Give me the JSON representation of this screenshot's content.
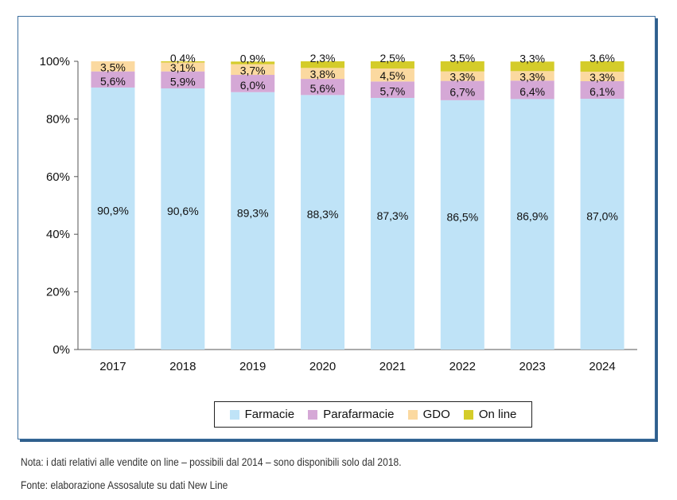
{
  "chart_data": {
    "type": "bar",
    "stacked": true,
    "categories": [
      "2017",
      "2018",
      "2019",
      "2020",
      "2021",
      "2022",
      "2023",
      "2024"
    ],
    "series": [
      {
        "name": "Farmacie",
        "color": "#bfe3f7",
        "values": [
          90.9,
          90.6,
          89.3,
          88.3,
          87.3,
          86.5,
          86.9,
          87.0
        ],
        "labels": [
          "90,9%",
          "90,6%",
          "89,3%",
          "88,3%",
          "87,3%",
          "86,5%",
          "86,9%",
          "87,0%"
        ]
      },
      {
        "name": "Parafarmacie",
        "color": "#d5a8d6",
        "values": [
          5.6,
          5.9,
          6.0,
          5.6,
          5.7,
          6.7,
          6.4,
          6.1
        ],
        "labels": [
          "5,6%",
          "5,9%",
          "6,0%",
          "5,6%",
          "5,7%",
          "6,7%",
          "6,4%",
          "6,1%"
        ]
      },
      {
        "name": "GDO",
        "color": "#fbd9a0",
        "values": [
          3.5,
          3.1,
          3.7,
          3.8,
          4.5,
          3.3,
          3.3,
          3.3
        ],
        "labels": [
          "3,5%",
          "3,1%",
          "3,7%",
          "3,8%",
          "4,5%",
          "3,3%",
          "3,3%",
          "3,3%"
        ]
      },
      {
        "name": "On line",
        "color": "#d4cc2a",
        "values": [
          0,
          0.4,
          0.9,
          2.3,
          2.5,
          3.5,
          3.3,
          3.6
        ],
        "labels": [
          "",
          "0,4%",
          "0,9%",
          "2,3%",
          "2,5%",
          "3,5%",
          "3,3%",
          "3,6%"
        ]
      }
    ],
    "ylim": [
      0,
      100
    ],
    "yticks": [
      "0%",
      "20%",
      "40%",
      "60%",
      "80%",
      "100%"
    ],
    "grid": false,
    "legend_position": "bottom"
  },
  "notes": {
    "nota": "Nota: i dati relativi alle vendite on line – possibili dal 2014 – sono disponibili solo dal 2018.",
    "fonte": "Fonte: elaborazione Assosalute su dati New Line"
  }
}
